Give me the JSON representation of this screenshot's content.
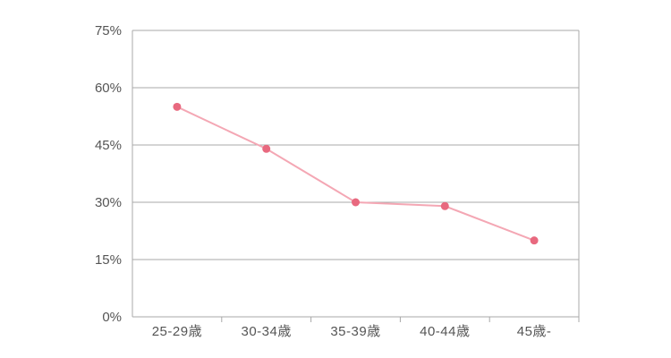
{
  "chart_data": {
    "type": "line",
    "categories": [
      "25-29歳",
      "30-34歳",
      "35-39歳",
      "40-44歳",
      "45歳-"
    ],
    "series": [
      {
        "values": [
          55,
          44,
          30,
          29,
          20
        ],
        "color": "#e8697f",
        "line_color": "#f4a7b4"
      }
    ],
    "title": "",
    "xlabel": "",
    "ylabel": "",
    "ylim": [
      0,
      75
    ],
    "yticks": [
      0,
      15,
      30,
      45,
      60,
      75
    ],
    "ytick_suffix": "%",
    "grid": "horizontal",
    "legend": "none"
  }
}
